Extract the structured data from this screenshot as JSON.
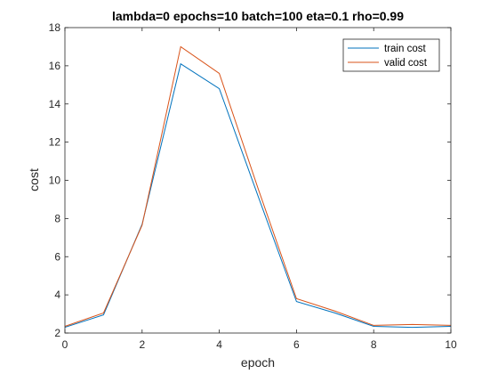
{
  "chart_data": {
    "type": "line",
    "title": "lambda=0 epochs=10 batch=100 eta=0.1 rho=0.99",
    "xlabel": "epoch",
    "ylabel": "cost",
    "xlim": [
      0,
      10
    ],
    "ylim": [
      2,
      18
    ],
    "xticks": [
      0,
      2,
      4,
      6,
      8,
      10
    ],
    "yticks": [
      2,
      4,
      6,
      8,
      10,
      12,
      14,
      16,
      18
    ],
    "grid": false,
    "legend_position": "top-right",
    "x": [
      0,
      1,
      2,
      3,
      4,
      5,
      6,
      7,
      8,
      9,
      10
    ],
    "series": [
      {
        "name": "train cost",
        "color": "#0072BD",
        "values": [
          2.3,
          2.95,
          7.7,
          16.1,
          14.8,
          9.2,
          3.65,
          3.05,
          2.35,
          2.3,
          2.35
        ]
      },
      {
        "name": "valid cost",
        "color": "#D95319",
        "values": [
          2.35,
          3.05,
          7.65,
          17.0,
          15.6,
          9.6,
          3.8,
          3.15,
          2.4,
          2.45,
          2.4
        ]
      }
    ]
  }
}
